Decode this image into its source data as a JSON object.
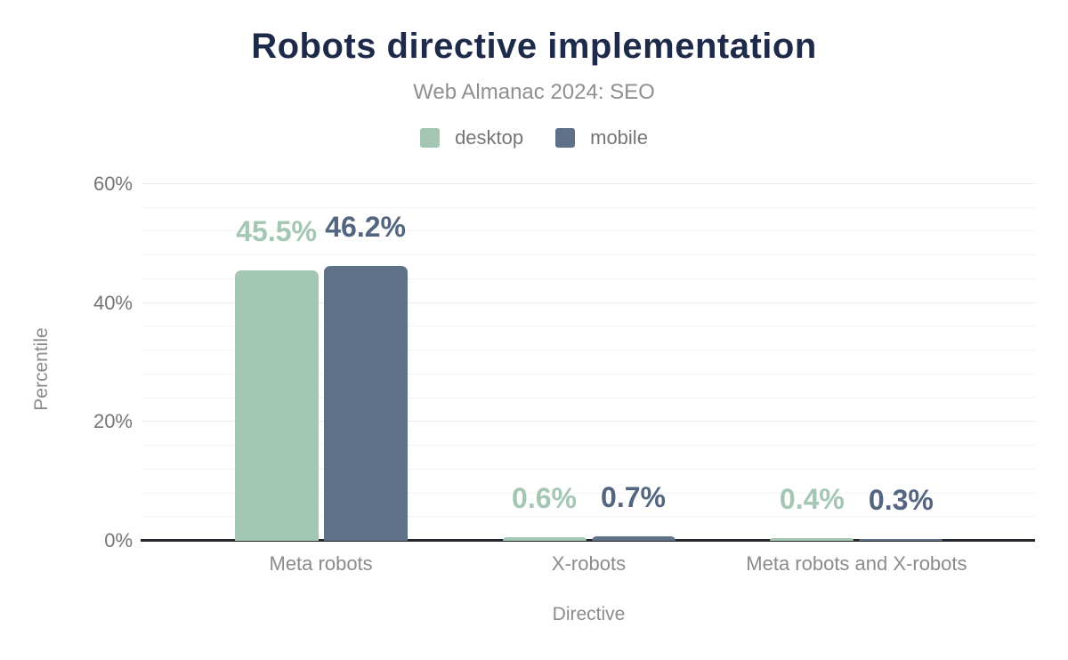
{
  "chart_data": {
    "type": "bar",
    "title": "Robots directive implementation",
    "subtitle": "Web Almanac 2024: SEO",
    "xlabel": "Directive",
    "ylabel": "Percentile",
    "categories": [
      "Meta robots",
      "X-robots",
      "Meta robots and X-robots"
    ],
    "series": [
      {
        "name": "desktop",
        "color": "#a4c7b4",
        "label_color": "#a3c7b3",
        "values": [
          45.5,
          0.6,
          0.4
        ],
        "labels": [
          "45.5%",
          "0.6%",
          "0.4%"
        ]
      },
      {
        "name": "mobile",
        "color": "#5f7189",
        "label_color": "#536580",
        "values": [
          46.2,
          0.7,
          0.3
        ],
        "labels": [
          "46.2%",
          "0.7%",
          "0.3%"
        ]
      }
    ],
    "ylim": [
      0,
      60
    ],
    "yticks": [
      {
        "value": 0,
        "label": "0%"
      },
      {
        "value": 20,
        "label": "20%"
      },
      {
        "value": 40,
        "label": "40%"
      },
      {
        "value": 60,
        "label": "60%"
      }
    ],
    "grid": {
      "on": true,
      "minor_step": 4,
      "major_step": 20
    },
    "legend_position": "top"
  },
  "colors": {
    "background": "#ffffff",
    "title": "#1e2a49",
    "subtitle_text": "#8f8f8f",
    "tick_text": "#757575",
    "category_text": "#8b8b8b",
    "axis_title_text": "#8b8b8b",
    "legend_text": "#757575",
    "axis_line": "#24272b",
    "grid_minor": "#f3f3f3",
    "grid_major": "#e9e9e9"
  }
}
